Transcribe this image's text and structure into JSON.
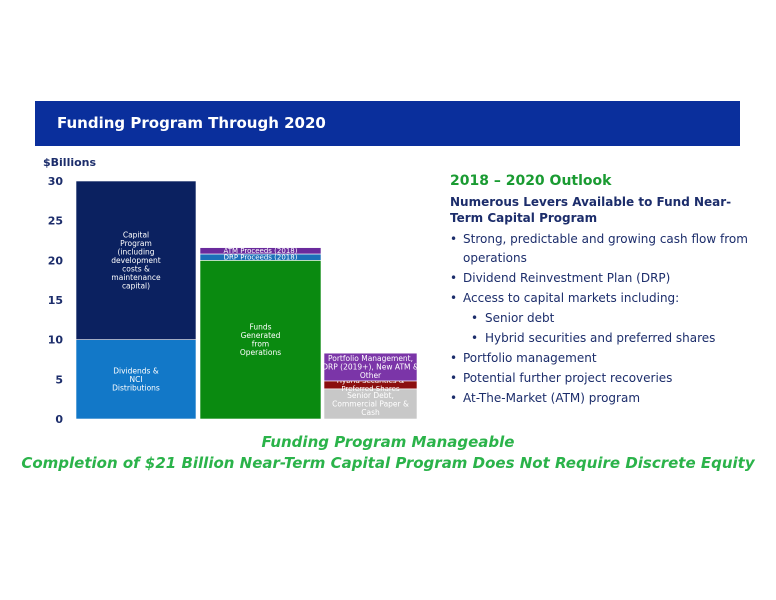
{
  "header": {
    "title": "Funding Program Through 2020"
  },
  "chart_data": {
    "type": "bar",
    "stacked": true,
    "ylabel": "$Billions",
    "ylim": [
      0,
      30
    ],
    "yticks": [
      0,
      5,
      10,
      15,
      20,
      25,
      30
    ],
    "grid": false,
    "columns": [
      {
        "segments": [
          {
            "label": "Dividends & NCI Distributions",
            "value": 10,
            "color": "#1278c8"
          },
          {
            "label": "Capital Program (including development costs & maintenance capital)",
            "value": 20,
            "color": "#0b2160"
          }
        ]
      },
      {
        "segments": [
          {
            "label": "Funds Generated from Operations",
            "value": 20,
            "color": "#0a8a10"
          },
          {
            "label": "DRP Proceeds (2018)",
            "value": 0.8,
            "color": "#1b6fb8"
          },
          {
            "label": "ATM Proceeds (2018)",
            "value": 0.8,
            "color": "#6a2a9c"
          }
        ]
      },
      {
        "segments": [
          {
            "label": "Senior Debt, Commercial Paper & Cash",
            "value": 3.8,
            "color": "#c8c8c8"
          },
          {
            "label": "Hybrid Securities & Preferred Shares",
            "value": 1,
            "color": "#8b0f0f"
          },
          {
            "label": "Portfolio Management, DRP (2019+), New ATM & Other",
            "value": 3.5,
            "color": "#7b35a8"
          }
        ]
      }
    ]
  },
  "outlook": {
    "title": "2018 – 2020 Outlook",
    "subtitle": "Numerous Levers Available to Fund Near-Term Capital Program",
    "bullets": [
      {
        "text": "Strong, predictable and growing cash flow from operations",
        "level": 1
      },
      {
        "text": "Dividend Reinvestment Plan (DRP)",
        "level": 1
      },
      {
        "text": "Access to capital markets including:",
        "level": 1
      },
      {
        "text": "Senior debt",
        "level": 2
      },
      {
        "text": "Hybrid securities and preferred shares",
        "level": 2
      },
      {
        "text": "Portfolio management",
        "level": 1
      },
      {
        "text": "Potential further project recoveries",
        "level": 1
      },
      {
        "text": "At-The-Market (ATM) program",
        "level": 1
      }
    ]
  },
  "footer": {
    "line1": "Funding Program Manageable",
    "line2": "Completion of $21 Billion Near-Term Capital Program Does Not Require Discrete Equity"
  }
}
